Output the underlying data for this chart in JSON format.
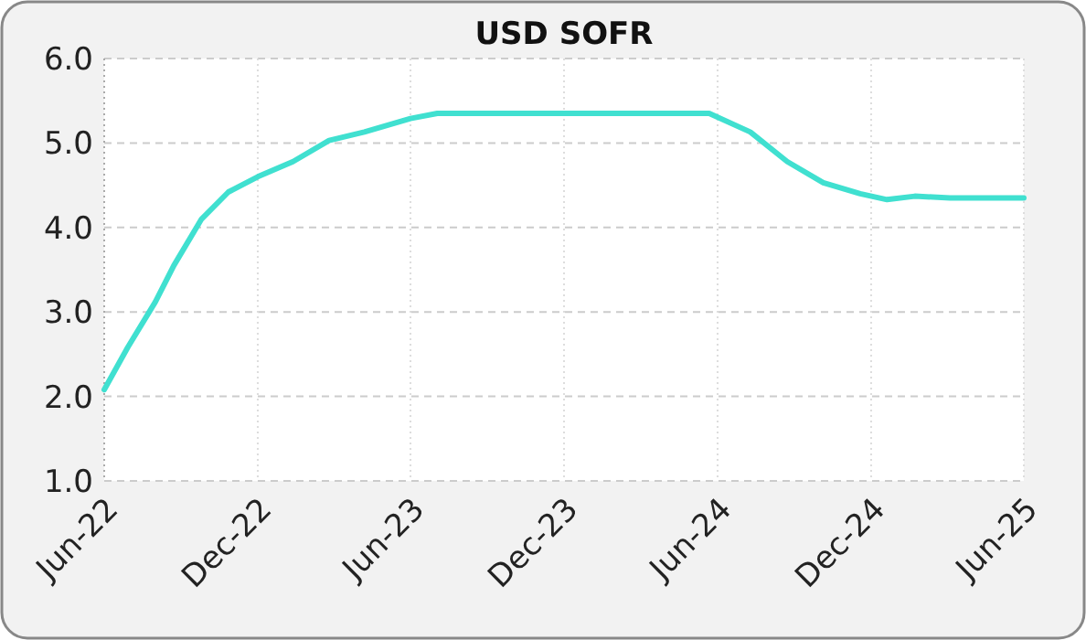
{
  "chart_data": {
    "type": "line",
    "title": "USD SOFR",
    "x": [
      "2022-06-01",
      "2022-06-29",
      "2022-08-01",
      "2022-08-23",
      "2022-09-25",
      "2022-10-27",
      "2022-12-01",
      "2023-01-12",
      "2023-02-24",
      "2023-04-07",
      "2023-06-01",
      "2023-07-03",
      "2023-11-12",
      "2024-03-01",
      "2024-05-22",
      "2024-07-10",
      "2024-08-23",
      "2024-10-05",
      "2024-11-18",
      "2024-12-20",
      "2025-01-22",
      "2025-03-05",
      "2025-06-01"
    ],
    "series": [
      {
        "color": "#40e0d0",
        "values": [
          2.08,
          2.58,
          3.12,
          3.55,
          4.1,
          4.42,
          4.6,
          4.78,
          5.03,
          5.13,
          5.29,
          5.35,
          5.35,
          5.35,
          5.35,
          5.13,
          4.78,
          4.53,
          4.4,
          4.33,
          4.37,
          4.35,
          4.35
        ]
      }
    ],
    "xlim": [
      "2022-06-01",
      "2025-06-01"
    ],
    "xticks": [
      {
        "value": "2022-06-01",
        "label": "Jun-22"
      },
      {
        "value": "2022-12-01",
        "label": "Dec-22"
      },
      {
        "value": "2023-06-01",
        "label": "Jun-23"
      },
      {
        "value": "2023-12-01",
        "label": "Dec-23"
      },
      {
        "value": "2024-06-01",
        "label": "Jun-24"
      },
      {
        "value": "2024-12-01",
        "label": "Dec-24"
      },
      {
        "value": "2025-06-01",
        "label": "Jun-25"
      }
    ],
    "ylim": [
      1,
      6
    ],
    "yticks": [
      {
        "value": 1,
        "label": "1.0"
      },
      {
        "value": 2,
        "label": "2.0"
      },
      {
        "value": 3,
        "label": "3.0"
      },
      {
        "value": 4,
        "label": "4.0"
      },
      {
        "value": 5,
        "label": "5.0"
      },
      {
        "value": 6,
        "label": "6.0"
      }
    ],
    "grid": true,
    "marker": "none",
    "line_style": "solid"
  }
}
